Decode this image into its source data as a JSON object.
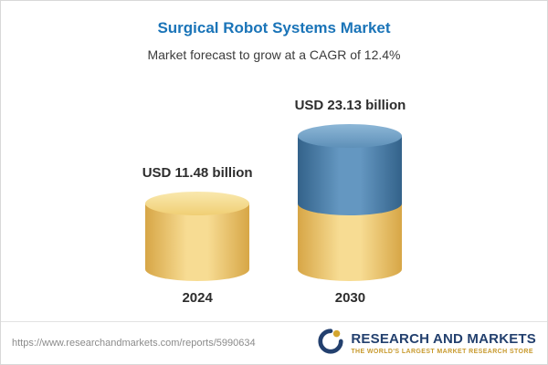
{
  "header": {
    "title": "Surgical Robot Systems Market",
    "subtitle": "Market forecast to grow at a CAGR of 12.4%"
  },
  "chart_data": {
    "type": "bar",
    "title": "Surgical Robot Systems Market",
    "subtitle": "Market forecast to grow at a CAGR of 12.4%",
    "categories": [
      "2024",
      "2030"
    ],
    "values": [
      11.48,
      23.13
    ],
    "value_labels": [
      "USD 11.48 billion",
      "USD 23.13 billion"
    ],
    "unit": "USD billion",
    "xlabel": "",
    "ylabel": "",
    "ylim": [
      0,
      23.13
    ],
    "legend": "none",
    "grid": "off",
    "cagr_percent": 12.4,
    "colors": {
      "base_segment": "#f1d27e",
      "growth_segment": "#4d80ad",
      "title_accent": "#1a74b8"
    }
  },
  "footer": {
    "url": "https://www.researchandmarkets.com/reports/5990634",
    "logo_name": "RESEARCH AND MARKETS",
    "logo_tagline": "THE WORLD'S LARGEST MARKET RESEARCH STORE"
  }
}
